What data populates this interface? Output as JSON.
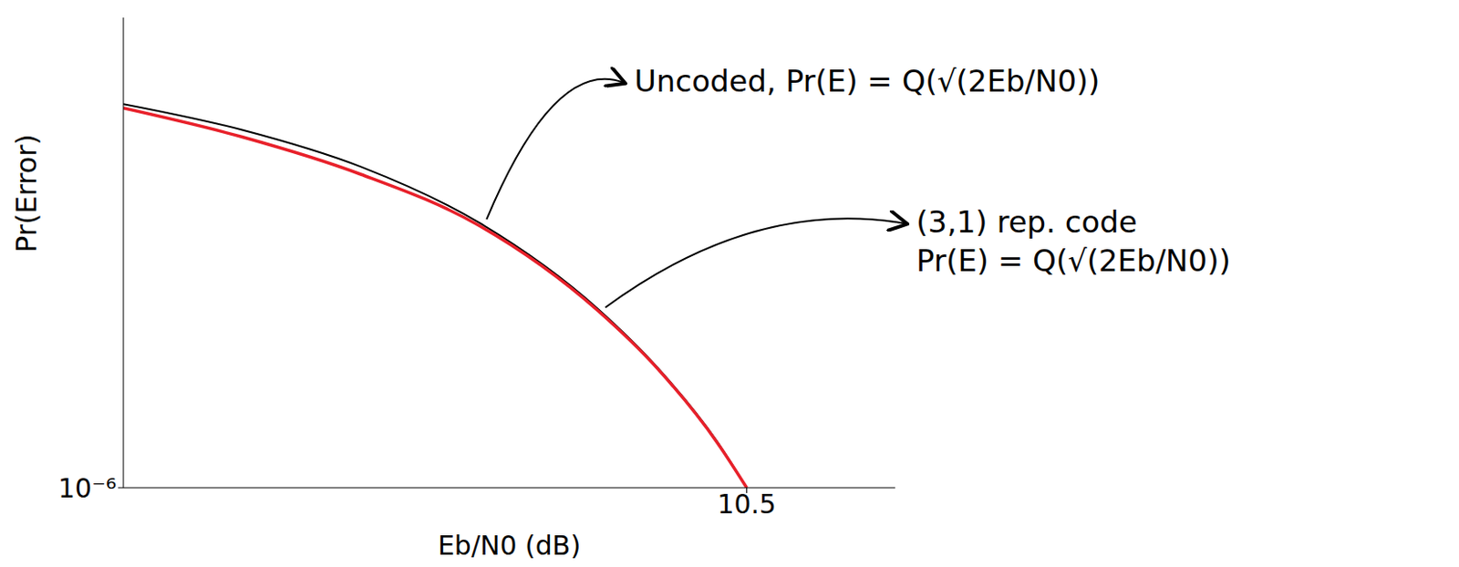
{
  "chart_data": {
    "type": "line",
    "x_label": "Eb/N0 (dB)",
    "y_label": "Pr(Error)",
    "x": [
      0,
      2,
      4,
      6,
      8,
      9,
      10,
      10.5
    ],
    "series": [
      {
        "color": "#000000",
        "values": [
          0.079,
          0.037,
          0.0125,
          0.0024,
          0.00019,
          3.4e-05,
          3.9e-06,
          1e-06
        ]
      },
      {
        "color": "#e8202a",
        "values": [
          0.07,
          0.03,
          0.01,
          0.0022,
          0.00018,
          3.3e-05,
          3.8e-06,
          1e-06
        ]
      }
    ],
    "xlim": [
      0,
      13
    ],
    "ylim": [
      1e-06,
      1
    ],
    "xticks": [
      10.5
    ],
    "yticks": [
      {
        "value": 1e-06,
        "label": "10⁻⁶"
      }
    ],
    "log": "y",
    "grid": false,
    "annotations": [
      {
        "text": [
          "Uncoded, Pr(E) = Q(√(2Eb/N0))"
        ],
        "series": 0,
        "at": 3
      },
      {
        "text": [
          "(3,1) rep. code",
          "Pr(E) = Q(√(2Eb/N0))"
        ],
        "series": 1,
        "at": 4
      }
    ]
  }
}
